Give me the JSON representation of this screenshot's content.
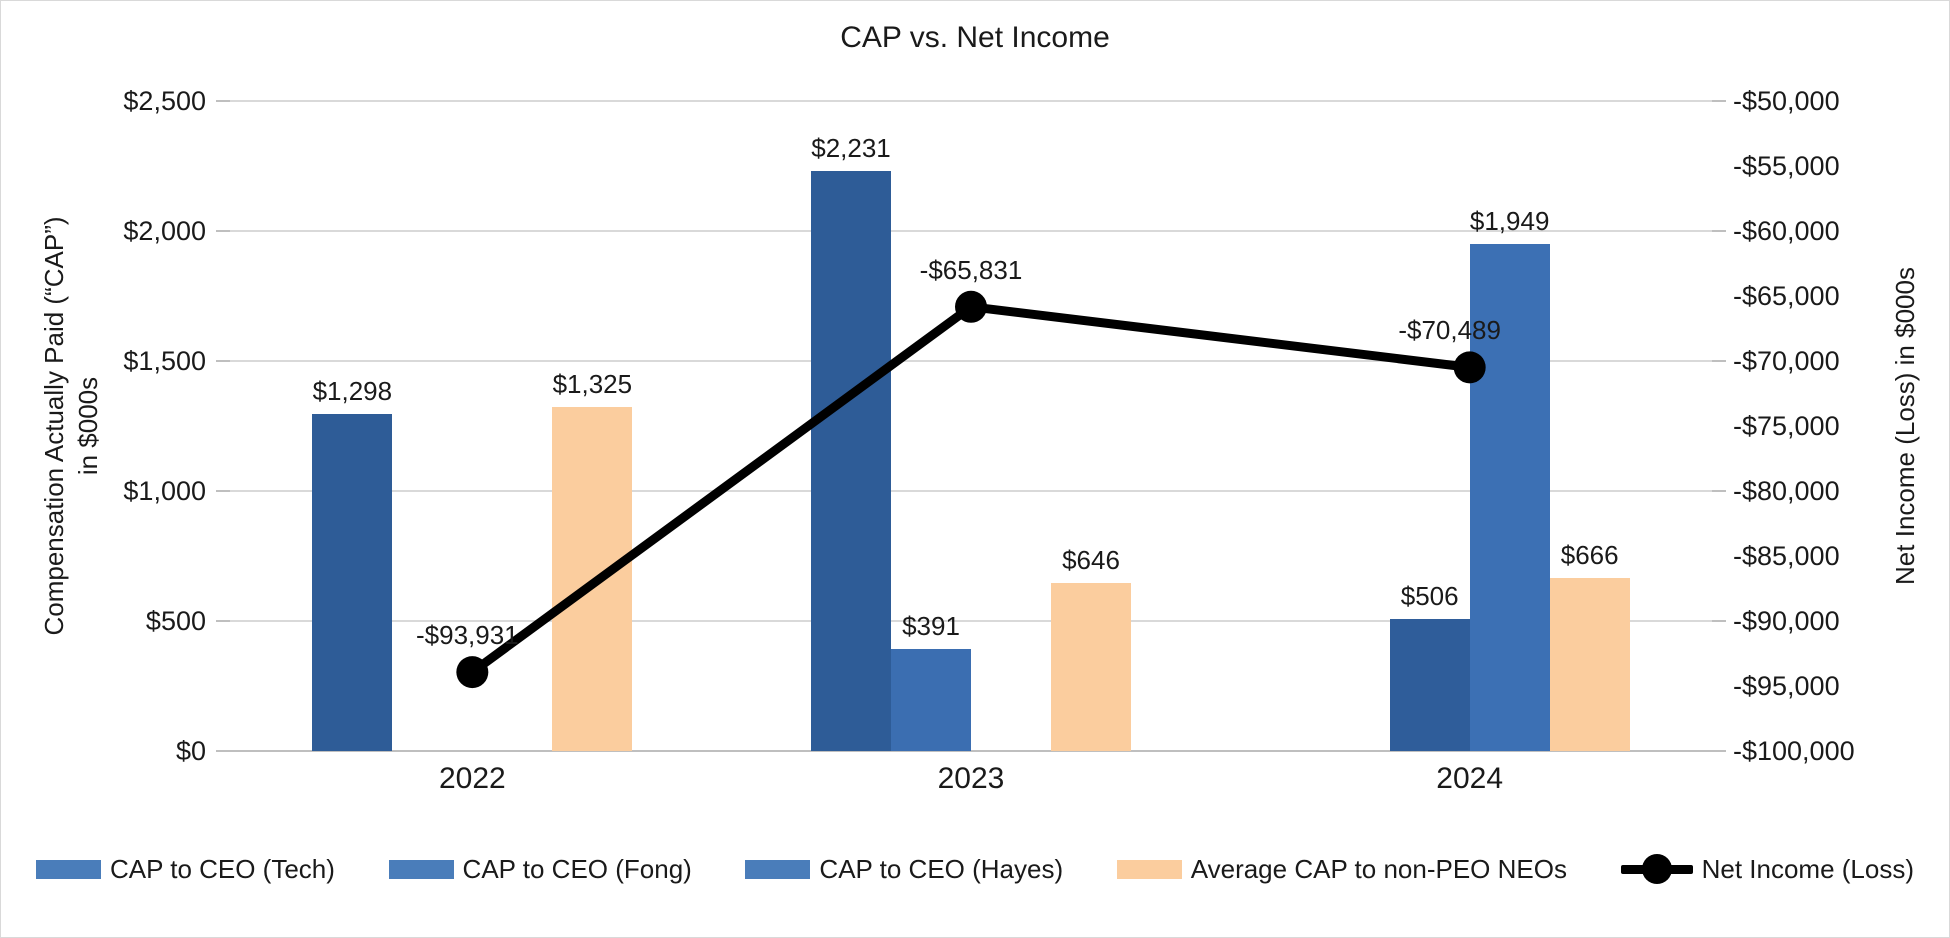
{
  "chart_data": {
    "type": "combo-bar-line",
    "title": "CAP vs. Net Income",
    "categories": [
      "2022",
      "2023",
      "2024"
    ],
    "left_axis": {
      "label_line1": "Compensation Actually Paid (“CAP”)",
      "label_line2": "in $000s",
      "min": 0,
      "max": 2500,
      "step": 500,
      "tick_labels": [
        "$2,500",
        "$2,000",
        "$1,500",
        "$1,000",
        "$500",
        "$0"
      ]
    },
    "right_axis": {
      "label": "Net Income (Loss) in $000s",
      "min": -100000,
      "max": -50000,
      "step": 5000,
      "tick_labels": [
        "-$50,000",
        "-$55,000",
        "-$60,000",
        "-$65,000",
        "-$70,000",
        "-$75,000",
        "-$80,000",
        "-$85,000",
        "-$90,000",
        "-$95,000",
        "-$100,000"
      ]
    },
    "series": [
      {
        "name": "CAP to CEO (Tech)",
        "type": "bar",
        "slot": 0,
        "values": [
          1298,
          2231,
          null
        ],
        "data_labels": [
          "$1,298",
          "$2,231",
          null
        ],
        "colors": [
          "#2E5C97",
          "#2E5C97",
          null
        ],
        "legend_color": "#4A7DBA"
      },
      {
        "name": "CAP to CEO (Fong)",
        "type": "bar",
        "slot": 1,
        "values": [
          null,
          391,
          506
        ],
        "data_labels": [
          null,
          "$391",
          "$506"
        ],
        "colors": [
          null,
          "#3B6EB1",
          "#2F5D9A"
        ],
        "legend_color": "#4A7DBA"
      },
      {
        "name": "CAP to CEO (Hayes)",
        "type": "bar",
        "slot": 2,
        "values": [
          null,
          null,
          1949
        ],
        "data_labels": [
          null,
          null,
          "$1,949"
        ],
        "colors": [
          null,
          null,
          "#3C70B4"
        ],
        "legend_color": "#4A7DBA"
      },
      {
        "name": "Average CAP to non-PEO NEOs",
        "type": "bar",
        "slot": 3,
        "values": [
          1325,
          646,
          666
        ],
        "data_labels": [
          "$1,325",
          "$646",
          "$666"
        ],
        "colors": [
          "#FBCD9E",
          "#FBCD9E",
          "#FBCD9E"
        ],
        "legend_color": "#FBCD9E"
      },
      {
        "name": "Net Income (Loss)",
        "type": "line",
        "values": [
          -93931,
          -65831,
          -70489
        ],
        "data_labels": [
          "-$93,931",
          "-$65,831",
          "-$70,489"
        ],
        "color": "#000000"
      }
    ],
    "style_colors": {
      "gridline": "#D9D9D9",
      "axis_line": "#BFBFBF",
      "tick_mark": "#BFBFBF",
      "text": "#1A1A1A"
    }
  }
}
